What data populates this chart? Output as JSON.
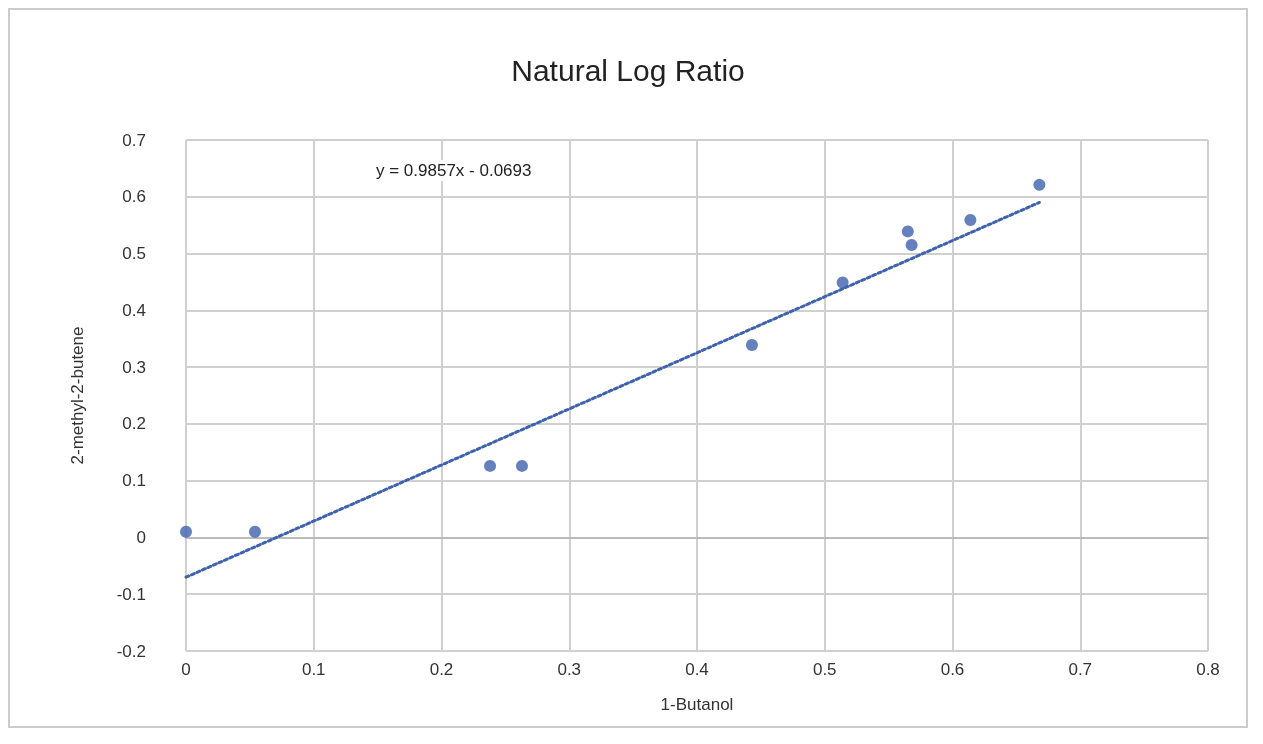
{
  "chart_data": {
    "type": "scatter",
    "title": "Natural Log Ratio",
    "xlabel": "1-Butanol",
    "ylabel": "2-methyl-2-butene",
    "x": [
      0,
      0.054,
      0.238,
      0.263,
      0.443,
      0.514,
      0.565,
      0.568,
      0.614,
      0.668
    ],
    "series": [
      {
        "color": "#3f62ad",
        "values": [
          0.01,
          0.01,
          0.126,
          0.126,
          0.339,
          0.449,
          0.539,
          0.515,
          0.559,
          0.621
        ],
        "marker": "circle"
      },
      {
        "type": "line",
        "color": "#3f62ad",
        "x": [
          0,
          0.668
        ],
        "values": [
          -0.07,
          0.59
        ],
        "line_style": "dotted",
        "marker": "none"
      }
    ],
    "annotations": [
      "y = 0.9857x - 0.0693"
    ],
    "xlim": [
      0,
      0.8
    ],
    "xticks": [
      0,
      0.1,
      0.2,
      0.3,
      0.4,
      0.5,
      0.6,
      0.7,
      0.8
    ],
    "ylim": [
      -0.2,
      0.7
    ],
    "yticks": [
      -0.2,
      -0.1,
      0,
      0.1,
      0.2,
      0.3,
      0.4,
      0.5,
      0.6,
      0.7
    ],
    "grid": true
  }
}
